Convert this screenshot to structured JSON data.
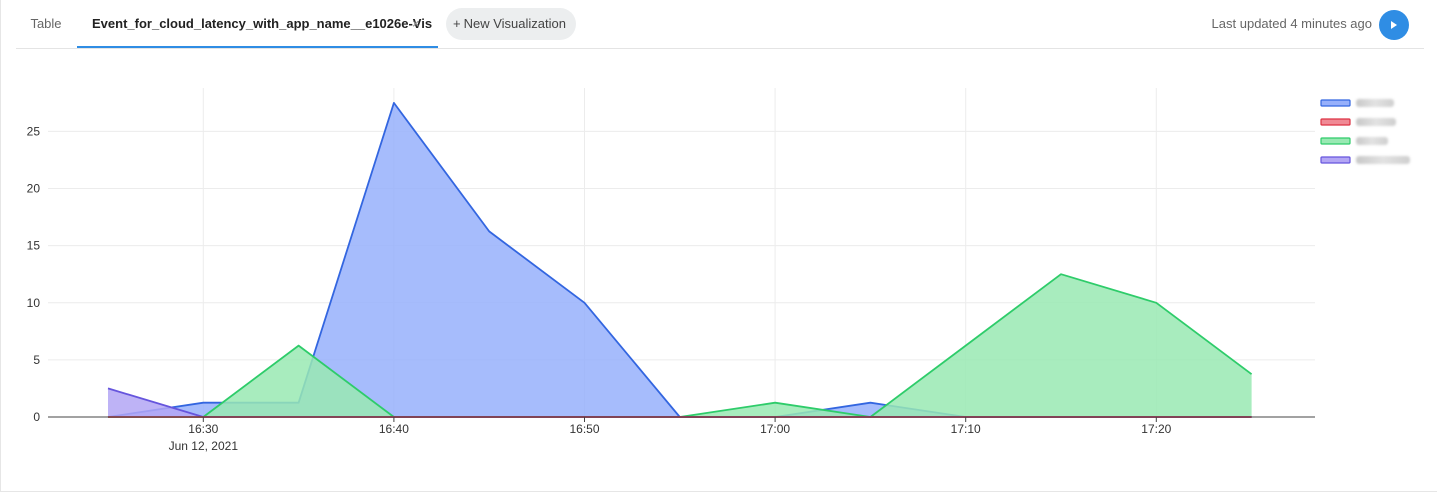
{
  "tabs": [
    {
      "label": "Table",
      "active": false
    },
    {
      "label": "Event_for_cloud_latency_with_app_name__e1026e-Vis",
      "active": true,
      "close": "×"
    }
  ],
  "new_visualization": {
    "plus": "+",
    "label": "New Visualization"
  },
  "status": {
    "last_updated": "Last updated 4 minutes ago"
  },
  "icons": {
    "play": "play-icon",
    "close": "close-icon"
  },
  "colors": {
    "accent": "#2f8de4",
    "series_blue": "#3366e0",
    "series_red": "#dd3344",
    "series_green": "#2ecc6a",
    "series_purple": "#6655dd"
  },
  "chart_data": {
    "type": "area",
    "x": [
      "16:25",
      "16:30",
      "16:35",
      "16:40",
      "16:45",
      "16:50",
      "16:55",
      "17:00",
      "17:05",
      "17:10",
      "17:15",
      "17:20",
      "17:25"
    ],
    "x_ticks": [
      "16:30",
      "16:40",
      "16:50",
      "17:00",
      "17:10",
      "17:20"
    ],
    "x_date_label": "Jun 12, 2021",
    "y_ticks": [
      0,
      5,
      10,
      15,
      20,
      25
    ],
    "ylim": [
      0,
      28.8
    ],
    "grid": true,
    "legend_placement": "top-right",
    "series": [
      {
        "color": "#3366e0",
        "fill": "#97b0fb",
        "values": [
          0,
          1.25,
          1.25,
          27.5,
          16.25,
          10,
          0,
          0,
          1.25,
          0,
          0,
          0,
          0
        ]
      },
      {
        "color": "#dd3344",
        "fill": "#f08a95",
        "values": [
          0,
          0,
          0,
          0,
          0,
          0,
          0,
          0,
          0,
          0,
          0,
          0,
          0
        ]
      },
      {
        "color": "#2ecc6a",
        "fill": "#99e9b3",
        "values": [
          0,
          0,
          6.25,
          0,
          0,
          0,
          0,
          1.25,
          0,
          6.25,
          12.5,
          10,
          3.75
        ]
      },
      {
        "color": "#6655dd",
        "fill": "#b3a6f4",
        "values": [
          2.5,
          0,
          0,
          0,
          0,
          0,
          0,
          0,
          0,
          0,
          0,
          0,
          0
        ]
      }
    ]
  }
}
